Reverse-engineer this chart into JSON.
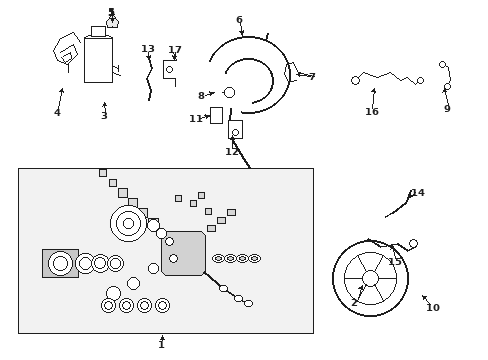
{
  "bg_color": "#ffffff",
  "line_color": "#1a1a1a",
  "box_fill": "#f0f0f0",
  "fig_w": 4.89,
  "fig_h": 3.6,
  "dpi": 100
}
